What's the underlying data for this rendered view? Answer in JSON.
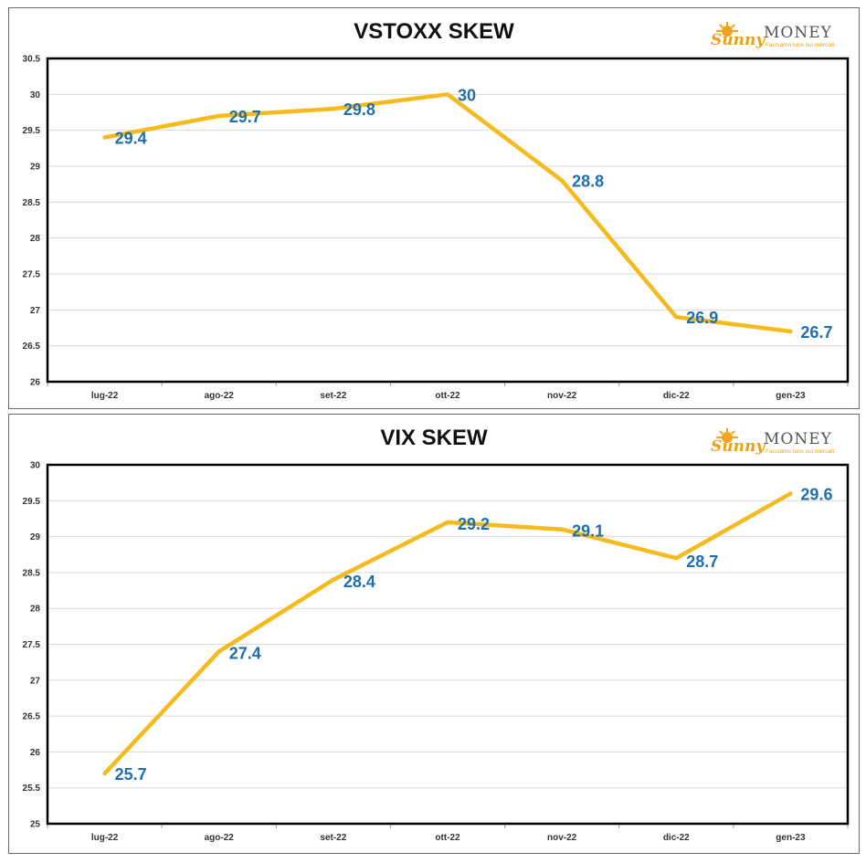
{
  "brand": {
    "logo_word": "MONEY",
    "logo_script": "Sunny",
    "logo_tagline": "Facciamo luce sui mercati"
  },
  "colors": {
    "line": "#f5bb1c",
    "data_label": "#1f6fb0",
    "grid": "#d9d9d9",
    "plot_border": "#000000"
  },
  "chart_data": [
    {
      "type": "line",
      "title": "VSTOXX SKEW",
      "categories": [
        "lug-22",
        "ago-22",
        "set-22",
        "ott-22",
        "nov-22",
        "dic-22",
        "gen-23"
      ],
      "values": [
        29.4,
        29.7,
        29.8,
        30,
        28.8,
        26.9,
        26.7
      ],
      "value_labels": [
        "29.4",
        "29.7",
        "29.8",
        "30",
        "28.8",
        "26.9",
        "26.7"
      ],
      "ylim": [
        26,
        30.5
      ],
      "yticks": [
        "26",
        "26.5",
        "27",
        "27.5",
        "28",
        "28.5",
        "29",
        "29.5",
        "30",
        "30.5"
      ],
      "grid": true,
      "legend": "none"
    },
    {
      "type": "line",
      "title": "VIX SKEW",
      "categories": [
        "lug-22",
        "ago-22",
        "set-22",
        "ott-22",
        "nov-22",
        "dic-22",
        "gen-23"
      ],
      "values": [
        25.7,
        27.4,
        28.4,
        29.2,
        29.1,
        28.7,
        29.6
      ],
      "value_labels": [
        "25.7",
        "27.4",
        "28.4",
        "29.2",
        "29.1",
        "28.7",
        "29.6"
      ],
      "ylim": [
        25,
        30
      ],
      "yticks": [
        "25",
        "25.5",
        "26",
        "26.5",
        "27",
        "27.5",
        "28",
        "28.5",
        "29",
        "29.5",
        "30"
      ],
      "grid": true,
      "legend": "none"
    }
  ]
}
